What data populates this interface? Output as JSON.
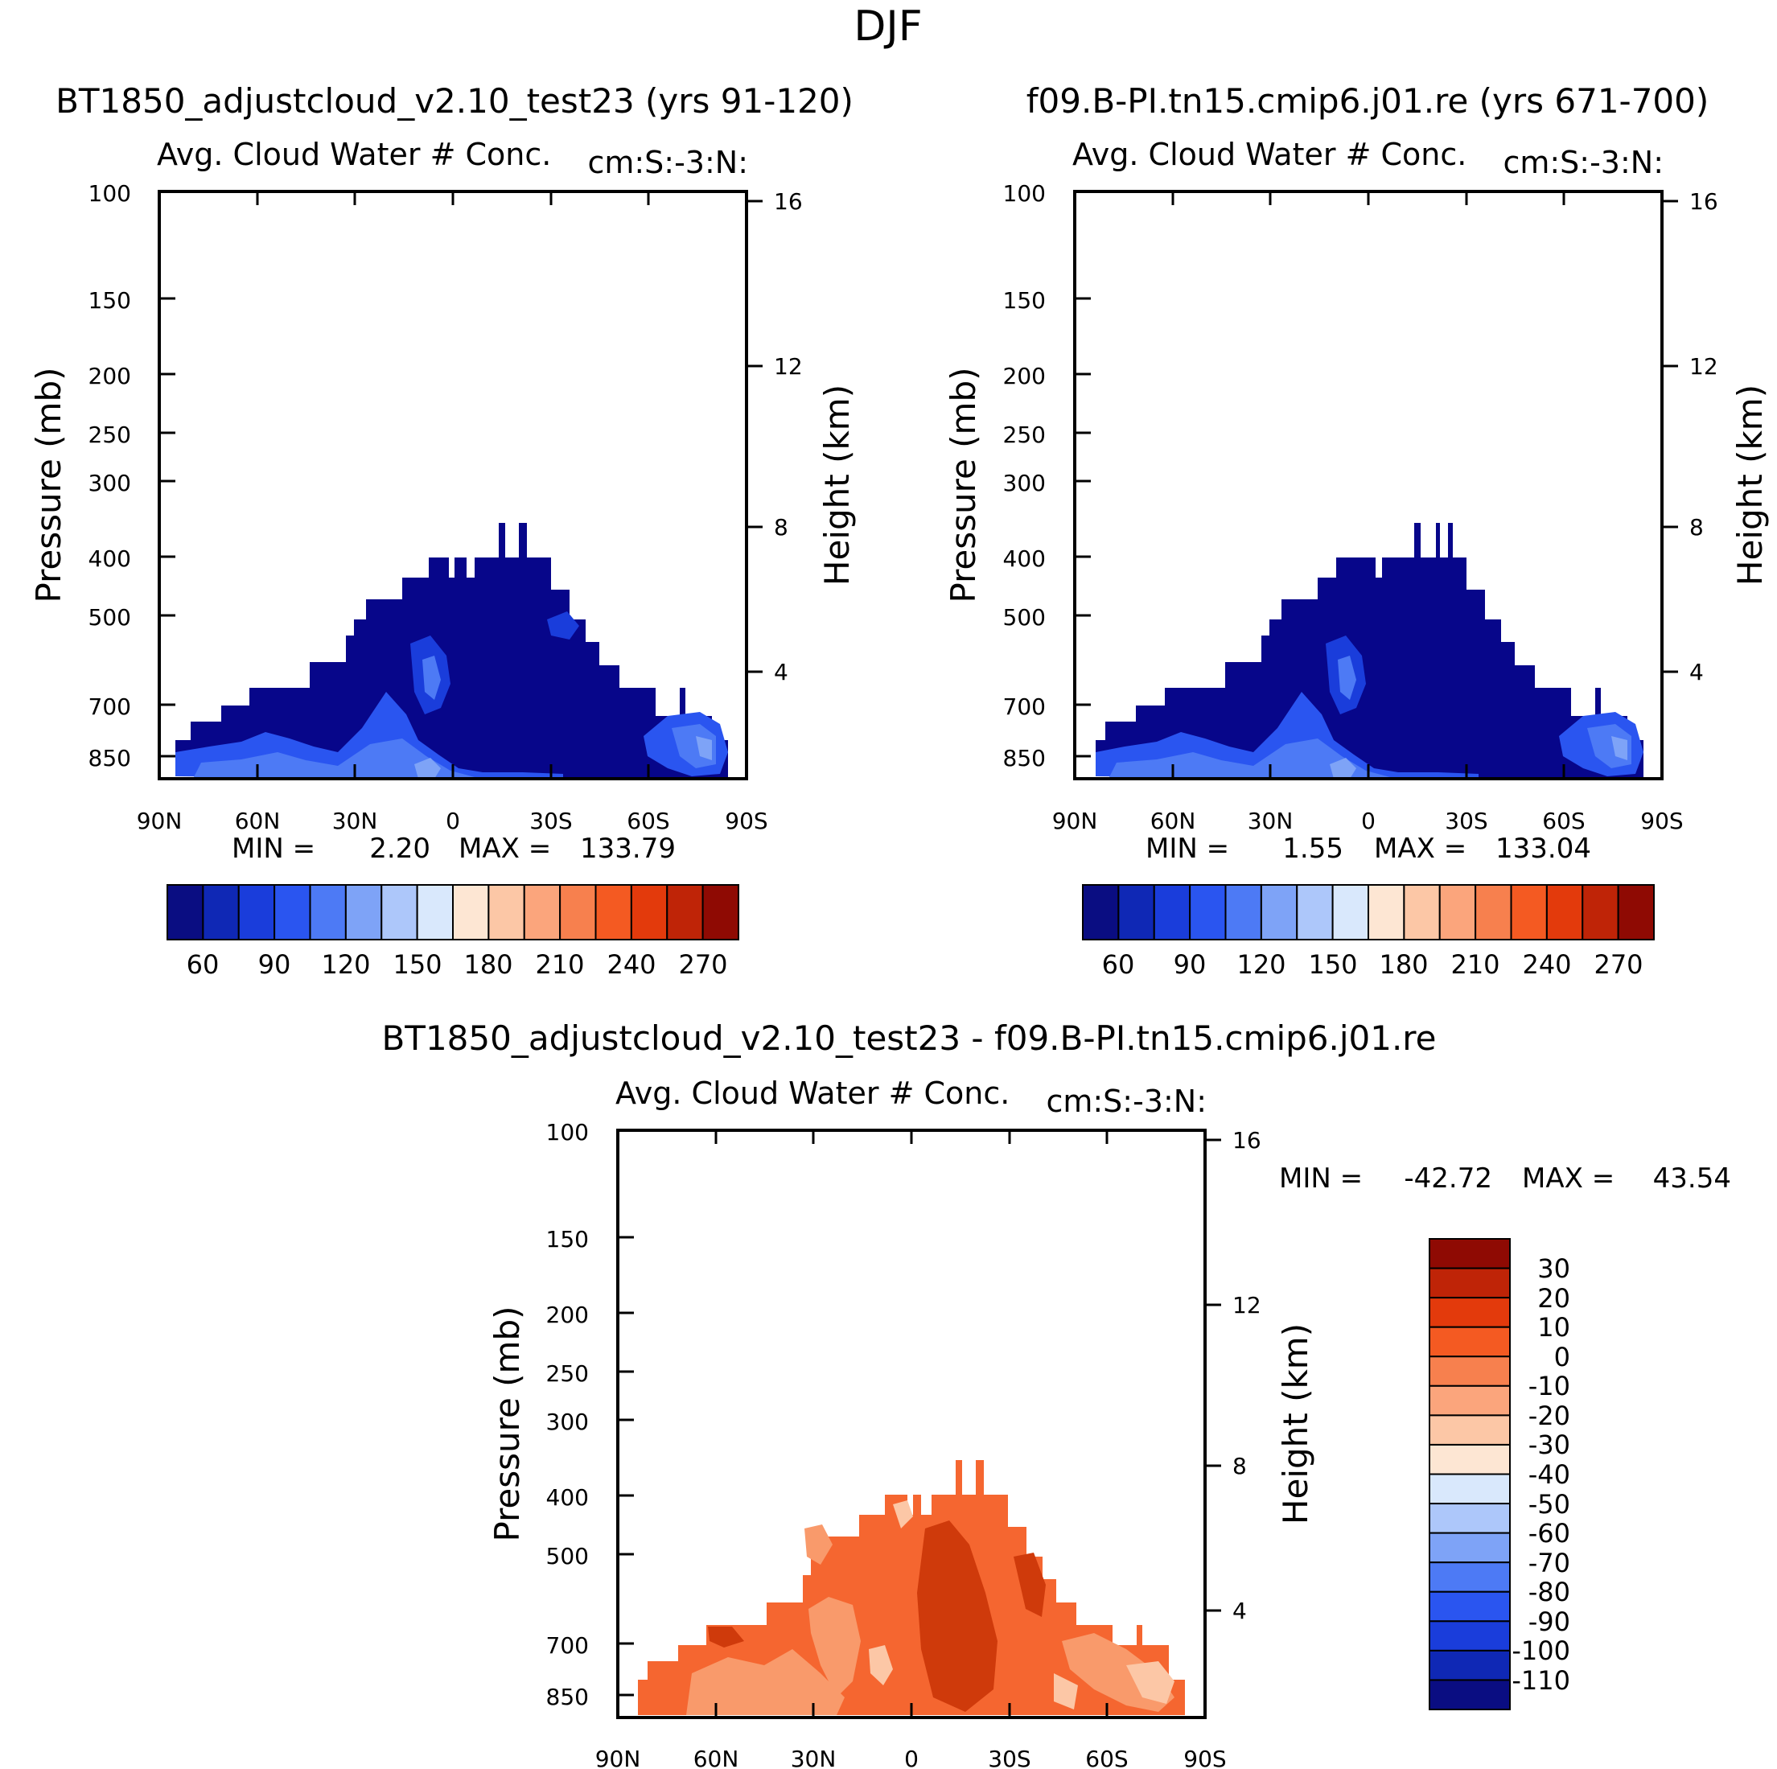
{
  "figure": {
    "title": "DJF"
  },
  "chart_data": [
    {
      "type": "heatmap",
      "panel": "top-left",
      "title": "BT1850_adjustcloud_v2.10_test23 (yrs 91-120)",
      "subtitle_left": "Avg. Cloud Water # Conc.",
      "subtitle_right": "cm:S:-3:N:",
      "ylabel": "Pressure (mb)",
      "ylabel_right": "Height (km)",
      "x_ticks": [
        "90N",
        "60N",
        "30N",
        "0",
        "30S",
        "60S",
        "90S"
      ],
      "y_ticks": [
        "100",
        "150",
        "200",
        "250",
        "300",
        "400",
        "500",
        "700",
        "850"
      ],
      "y_ticks_right": [
        "16",
        "12",
        "8",
        "4"
      ],
      "min_label": "MIN =",
      "min_value": "2.20",
      "max_label": "MAX =",
      "max_value": "133.79",
      "colorbar_labels": [
        "60",
        "90",
        "120",
        "150",
        "180",
        "210",
        "240",
        "270"
      ]
    },
    {
      "type": "heatmap",
      "panel": "top-right",
      "title": "f09.B-PI.tn15.cmip6.j01.re (yrs 671-700)",
      "subtitle_left": "Avg. Cloud Water # Conc.",
      "subtitle_right": "cm:S:-3:N:",
      "ylabel": "Pressure (mb)",
      "ylabel_right": "Height (km)",
      "x_ticks": [
        "90N",
        "60N",
        "30N",
        "0",
        "30S",
        "60S",
        "90S"
      ],
      "y_ticks": [
        "100",
        "150",
        "200",
        "250",
        "300",
        "400",
        "500",
        "700",
        "850"
      ],
      "y_ticks_right": [
        "16",
        "12",
        "8",
        "4"
      ],
      "min_label": "MIN =",
      "min_value": "1.55",
      "max_label": "MAX =",
      "max_value": "133.04",
      "colorbar_labels": [
        "60",
        "90",
        "120",
        "150",
        "180",
        "210",
        "240",
        "270"
      ]
    },
    {
      "type": "heatmap",
      "panel": "bottom",
      "title": "BT1850_adjustcloud_v2.10_test23 - f09.B-PI.tn15.cmip6.j01.re",
      "subtitle_left": "Avg. Cloud Water # Conc.",
      "subtitle_right": "cm:S:-3:N:",
      "ylabel": "Pressure (mb)",
      "ylabel_right": "Height (km)",
      "x_ticks": [
        "90N",
        "60N",
        "30N",
        "0",
        "30S",
        "60S",
        "90S"
      ],
      "y_ticks": [
        "100",
        "150",
        "200",
        "250",
        "300",
        "400",
        "500",
        "700",
        "850"
      ],
      "y_ticks_right": [
        "16",
        "12",
        "8",
        "4"
      ],
      "min_label": "MIN =",
      "min_value": "-42.72",
      "max_label": "MAX =",
      "max_value": "43.54",
      "colorbar_labels": [
        "30",
        "20",
        "10",
        "0",
        "-10",
        "-20",
        "-30",
        "-40",
        "-50",
        "-60",
        "-70",
        "-80",
        "-90",
        "-100",
        "-110"
      ]
    }
  ],
  "palette": [
    "#0a0d82",
    "#0f28b5",
    "#1a3ddb",
    "#2a55f0",
    "#4d7af5",
    "#7ea3f7",
    "#adc7fa",
    "#d9e8fc",
    "#fde6d3",
    "#fcc7a6",
    "#fba57c",
    "#f7804e",
    "#f45a22",
    "#e33a0c",
    "#bf2407",
    "#8f0a03"
  ],
  "colors": {
    "inner_blue": "#07068a",
    "dark_red": "#cf3a0b",
    "mid_orange": "#f56630",
    "light_orange": "#f99a6b"
  }
}
